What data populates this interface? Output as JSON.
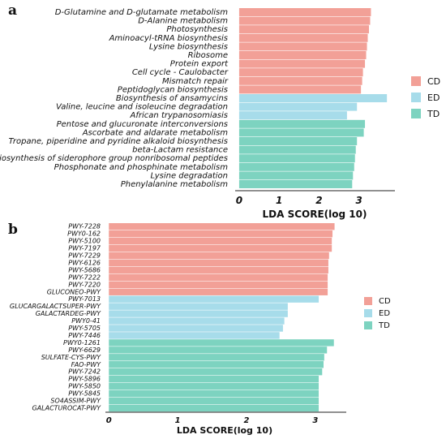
{
  "colors": {
    "CD": "#f2a097",
    "ED": "#a7dcea",
    "TD": "#7dd3c0"
  },
  "chart_data": [
    {
      "type": "bar",
      "orientation": "horizontal",
      "panel_label": "a",
      "xlabel": "LDA SCORE(log 10)",
      "xlim": [
        -0.1,
        3.9
      ],
      "xticks": [
        "0",
        "1",
        "2",
        "3"
      ],
      "legend": [
        {
          "label": "CD",
          "color_key": "CD"
        },
        {
          "label": "ED",
          "color_key": "ED"
        },
        {
          "label": "TD",
          "color_key": "TD"
        }
      ],
      "legend_position": "right",
      "categories": [
        {
          "label": "D-Glutamine and D-glutamate metabolism",
          "value": 3.3,
          "group": "CD"
        },
        {
          "label": "D-Alanine metabolism",
          "value": 3.28,
          "group": "CD"
        },
        {
          "label": "Photosynthesis",
          "value": 3.25,
          "group": "CD"
        },
        {
          "label": "Aminoacyl-tRNA biosynthesis",
          "value": 3.22,
          "group": "CD"
        },
        {
          "label": "Lysine biosynthesis",
          "value": 3.2,
          "group": "CD"
        },
        {
          "label": "Ribosome",
          "value": 3.18,
          "group": "CD"
        },
        {
          "label": "Protein export",
          "value": 3.15,
          "group": "CD"
        },
        {
          "label": "Cell cycle - Caulobacter",
          "value": 3.1,
          "group": "CD"
        },
        {
          "label": "Mismatch repair",
          "value": 3.08,
          "group": "CD"
        },
        {
          "label": "Peptidoglycan biosynthesis",
          "value": 3.05,
          "group": "CD"
        },
        {
          "label": "Biosynthesis of ansamycins",
          "value": 3.7,
          "group": "ED"
        },
        {
          "label": "Valine, leucine and isoleucine degradation",
          "value": 2.95,
          "group": "ED"
        },
        {
          "label": "African trypanosomiasis",
          "value": 2.7,
          "group": "ED"
        },
        {
          "label": "Pentose and glucuronate interconversions",
          "value": 3.15,
          "group": "TD"
        },
        {
          "label": "Ascorbate and aldarate metabolism",
          "value": 3.12,
          "group": "TD"
        },
        {
          "label": "Tropane, piperidine and pyridine alkaloid biosynthesis",
          "value": 2.95,
          "group": "TD"
        },
        {
          "label": "beta-Lactam resistance",
          "value": 2.92,
          "group": "TD"
        },
        {
          "label": "Biosynthesis of siderophore group nonribosomal peptides",
          "value": 2.9,
          "group": "TD"
        },
        {
          "label": "Phosphonate and phosphinate metabolism",
          "value": 2.88,
          "group": "TD"
        },
        {
          "label": "Lysine degradation",
          "value": 2.85,
          "group": "TD"
        },
        {
          "label": "Phenylalanine metabolism",
          "value": 2.83,
          "group": "TD"
        }
      ]
    },
    {
      "type": "bar",
      "orientation": "horizontal",
      "panel_label": "b",
      "xlabel": "LDA SCORE(log 10)",
      "xlim": [
        -0.05,
        3.45
      ],
      "xticks": [
        "0",
        "1",
        "2",
        "3"
      ],
      "legend": [
        {
          "label": "CD",
          "color_key": "CD"
        },
        {
          "label": "ED",
          "color_key": "ED"
        },
        {
          "label": "TD",
          "color_key": "TD"
        }
      ],
      "legend_position": "right",
      "categories": [
        {
          "label": "PWY-7228",
          "value": 3.28,
          "group": "CD"
        },
        {
          "label": "PWY0-162",
          "value": 3.25,
          "group": "CD"
        },
        {
          "label": "PWY-5100",
          "value": 3.24,
          "group": "CD"
        },
        {
          "label": "PWY-7197",
          "value": 3.24,
          "group": "CD"
        },
        {
          "label": "PWY-7229",
          "value": 3.2,
          "group": "CD"
        },
        {
          "label": "PWY-6126",
          "value": 3.19,
          "group": "CD"
        },
        {
          "label": "PWY-5686",
          "value": 3.19,
          "group": "CD"
        },
        {
          "label": "PWY-7222",
          "value": 3.18,
          "group": "CD"
        },
        {
          "label": "PWY-7220",
          "value": 3.18,
          "group": "CD"
        },
        {
          "label": "GLUCONEO-PWY",
          "value": 3.18,
          "group": "CD"
        },
        {
          "label": "PWY-7013",
          "value": 3.05,
          "group": "ED"
        },
        {
          "label": "GLUCARGALACTSUPER-PWY",
          "value": 2.6,
          "group": "ED"
        },
        {
          "label": "GALACTARDEG-PWY",
          "value": 2.6,
          "group": "ED"
        },
        {
          "label": "PWY0-41",
          "value": 2.55,
          "group": "ED"
        },
        {
          "label": "PWY-5705",
          "value": 2.53,
          "group": "ED"
        },
        {
          "label": "PWY-7446",
          "value": 2.48,
          "group": "ED"
        },
        {
          "label": "PWY0-1261",
          "value": 3.27,
          "group": "TD"
        },
        {
          "label": "PWY-6629",
          "value": 3.17,
          "group": "TD"
        },
        {
          "label": "SULFATE-CYS-PWY",
          "value": 3.13,
          "group": "TD"
        },
        {
          "label": "FAO-PWY",
          "value": 3.12,
          "group": "TD"
        },
        {
          "label": "PWY-7242",
          "value": 3.1,
          "group": "TD"
        },
        {
          "label": "PWY-5896",
          "value": 3.05,
          "group": "TD"
        },
        {
          "label": "PWY-5850",
          "value": 3.05,
          "group": "TD"
        },
        {
          "label": "PWY-5845",
          "value": 3.05,
          "group": "TD"
        },
        {
          "label": "SO4ASSIM-PWY",
          "value": 3.05,
          "group": "TD"
        },
        {
          "label": "GALACTUROCAT-PWY",
          "value": 3.05,
          "group": "TD"
        }
      ]
    }
  ]
}
